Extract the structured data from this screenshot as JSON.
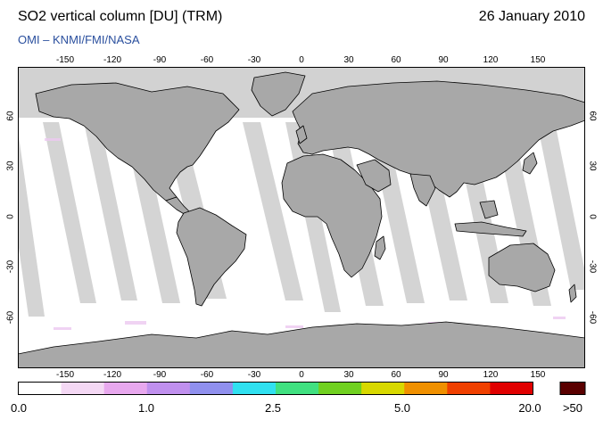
{
  "header": {
    "title": "SO2 vertical column [DU] (TRM)",
    "date": "26 January 2010",
    "subtitle": "OMI  –  KNMI/FMI/NASA"
  },
  "map": {
    "lon_ticks": [
      "-150",
      "-120",
      "-90",
      "-60",
      "-30",
      "0",
      "30",
      "60",
      "90",
      "120",
      "150"
    ],
    "lat_ticks": [
      "60",
      "30",
      "0",
      "-30",
      "-60"
    ],
    "colors": {
      "land_gray": "#a8a8a8",
      "polar_gray": "#d2d2d2",
      "swath_gray": "#cfcfcf",
      "coast": "#000000"
    }
  },
  "colorbar": {
    "labels": [
      "0.0",
      "1.0",
      "2.5",
      "5.0",
      "20.0"
    ],
    "overflow_label": ">50",
    "colors": [
      "#ffffff",
      "#f4d8f4",
      "#e8a8ee",
      "#c090ee",
      "#9090ee",
      "#30e0f0",
      "#40e080",
      "#70d020",
      "#d8d800",
      "#f09000",
      "#f04000",
      "#e00000"
    ],
    "overflow_color": "#5a0000"
  }
}
